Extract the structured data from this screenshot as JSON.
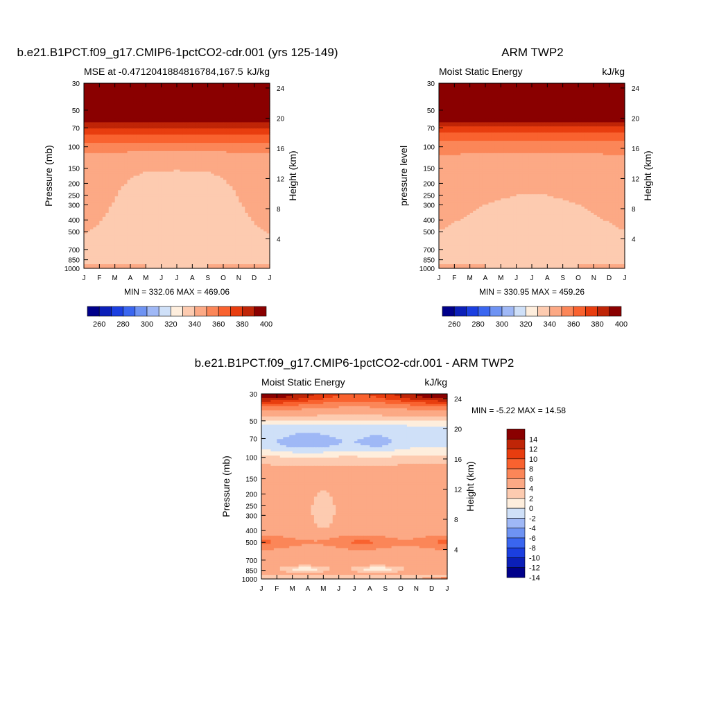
{
  "colors": {
    "abs_palette": [
      "#00008a",
      "#0b1fb8",
      "#1b3fe0",
      "#3a66f0",
      "#6e93f3",
      "#9fb8f6",
      "#cfe0f8",
      "#feeedd",
      "#fdcbb0",
      "#fca985",
      "#fb8658",
      "#f9622f",
      "#e83d0f",
      "#bf2507",
      "#8a0000"
    ],
    "diff_palette": [
      "#00008a",
      "#0b1fb8",
      "#1b3fe0",
      "#3a66f0",
      "#6e93f3",
      "#9fb8f6",
      "#cfe0f8",
      "#feeedd",
      "#fdcbb0",
      "#fca985",
      "#fb8658",
      "#f9622f",
      "#e83d0f",
      "#bf2507",
      "#8a0000"
    ]
  },
  "chart_data": [
    {
      "id": "model",
      "type": "heatmap",
      "title": "b.e21.B1PCT.f09_g17.CMIP6-1pctCO2-cdr.001 (yrs 125-149)",
      "left_label": "MSE at -0.471204188481678​4,167.5",
      "left_label_display": "MSE at -0.4712041884816784,167.5",
      "right_label": "kJ/kg",
      "ylabel": "Pressure (mb)",
      "ylabel_right": "Height (km)",
      "minmax": "MIN = 332.06 MAX = 469.06",
      "x_ticks": [
        "J",
        "F",
        "M",
        "A",
        "M",
        "J",
        "J",
        "A",
        "S",
        "O",
        "N",
        "D",
        "J"
      ],
      "y_ticks": [
        30,
        50,
        70,
        100,
        150,
        200,
        250,
        300,
        400,
        500,
        700,
        850,
        1000
      ],
      "y_right_ticks": [
        24,
        20,
        16,
        12,
        8,
        4
      ],
      "levels": [
        260,
        270,
        280,
        290,
        300,
        310,
        320,
        330,
        340,
        350,
        360,
        370,
        380,
        390,
        400
      ],
      "colorbar_labels": [
        "260",
        "280",
        "300",
        "320",
        "340",
        "360",
        "380",
        "400"
      ],
      "profile": [
        [
          20,
          440
        ],
        [
          55,
          405
        ],
        [
          60,
          395
        ],
        [
          65,
          385
        ],
        [
          75,
          375
        ],
        [
          90,
          362
        ],
        [
          110,
          350
        ],
        [
          160,
          340
        ],
        [
          300,
          338
        ],
        [
          600,
          336
        ],
        [
          900,
          336
        ],
        [
          1000,
          336
        ]
      ],
      "month_offset": [
        4,
        3,
        2,
        1,
        0,
        -1,
        -1.5,
        -1,
        0,
        1,
        2,
        3,
        4
      ]
    },
    {
      "id": "obs",
      "type": "heatmap",
      "title": "ARM TWP2",
      "left_label": "Moist Static Energy",
      "right_label": "kJ/kg",
      "ylabel": "pressure level",
      "ylabel_right": "Height (km)",
      "minmax": "MIN = 330.95 MAX = 459.26",
      "x_ticks": [
        "J",
        "F",
        "M",
        "A",
        "M",
        "J",
        "J",
        "A",
        "S",
        "O",
        "N",
        "D",
        "J"
      ],
      "y_ticks": [
        30,
        50,
        70,
        100,
        150,
        200,
        250,
        300,
        400,
        500,
        700,
        850,
        1000
      ],
      "y_right_ticks": [
        24,
        20,
        16,
        12,
        8,
        4
      ],
      "levels": [
        260,
        270,
        280,
        290,
        300,
        310,
        320,
        330,
        340,
        350,
        360,
        370,
        380,
        390,
        400
      ],
      "colorbar_labels": [
        "260",
        "280",
        "300",
        "320",
        "340",
        "360",
        "380",
        "400"
      ],
      "profile": [
        [
          20,
          440
        ],
        [
          55,
          405
        ],
        [
          60,
          395
        ],
        [
          65,
          385
        ],
        [
          75,
          372
        ],
        [
          90,
          360
        ],
        [
          120,
          348
        ],
        [
          300,
          340
        ],
        [
          500,
          337
        ],
        [
          900,
          336
        ],
        [
          1000,
          336
        ]
      ],
      "month_offset": [
        3,
        2,
        1,
        0,
        -1,
        -2,
        -2.5,
        -2,
        -1,
        0,
        1,
        2,
        3
      ]
    },
    {
      "id": "diff",
      "type": "heatmap",
      "title": "b.e21.B1PCT.f09_g17.CMIP6-1pctCO2-cdr.001 - ARM TWP2",
      "left_label": "Moist Static Energy",
      "right_label": "kJ/kg",
      "ylabel": "Pressure (mb)",
      "ylabel_right": "Height (km)",
      "minmax": "MIN =  -5.22 MAX =  14.58",
      "x_ticks": [
        "J",
        "F",
        "M",
        "A",
        "M",
        "J",
        "J",
        "A",
        "S",
        "O",
        "N",
        "D",
        "J"
      ],
      "y_ticks": [
        30,
        50,
        70,
        100,
        150,
        200,
        250,
        300,
        400,
        500,
        700,
        850,
        1000
      ],
      "y_right_ticks": [
        24,
        20,
        16,
        12,
        8,
        4
      ],
      "levels": [
        -14,
        -12,
        -10,
        -8,
        -6,
        -4,
        -2,
        0,
        2,
        4,
        6,
        8,
        10,
        12,
        14
      ],
      "colorbar_labels": [
        "14",
        "12",
        "10",
        "8",
        "6",
        "4",
        "2",
        "0",
        "-2",
        "-4",
        "-6",
        "-8",
        "-10",
        "-12",
        "-14"
      ]
    }
  ]
}
